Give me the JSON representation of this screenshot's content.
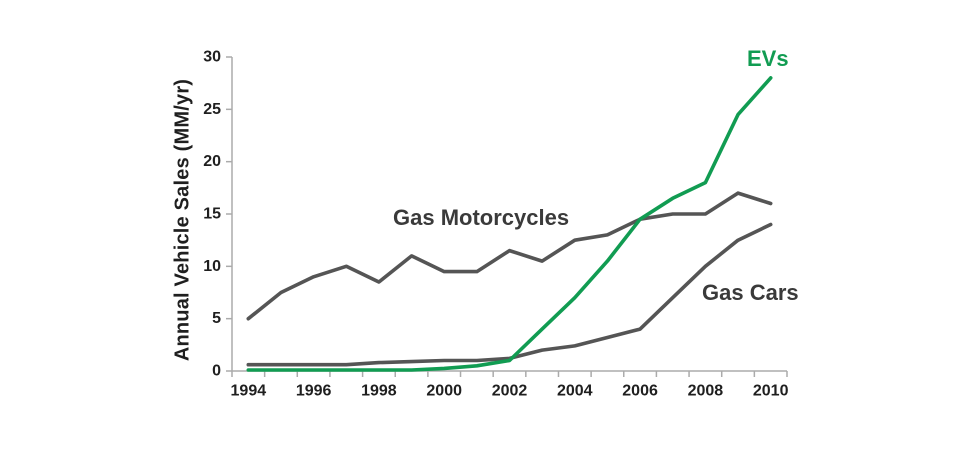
{
  "chart_data": {
    "type": "line",
    "title": "",
    "xlabel": "",
    "ylabel": "Annual Vehicle Sales (MM/yr)",
    "ylim": [
      0,
      30
    ],
    "y_ticks": [
      0,
      5,
      10,
      15,
      20,
      25,
      30
    ],
    "x_tick_labels": [
      "1994",
      "1996",
      "1998",
      "2000",
      "2002",
      "2004",
      "2006",
      "2008",
      "2010"
    ],
    "categories": [
      1994,
      1995,
      1996,
      1997,
      1998,
      1999,
      2000,
      2001,
      2002,
      2003,
      2004,
      2005,
      2006,
      2007,
      2008,
      2009,
      2010
    ],
    "series": [
      {
        "name": "Gas Motorcycles",
        "color": "#555555",
        "values": [
          5,
          7.5,
          9,
          10,
          8.5,
          11,
          9.5,
          9.5,
          11.5,
          10.5,
          12.5,
          13,
          14.5,
          15,
          15,
          17,
          16
        ]
      },
      {
        "name": "EVs",
        "color": "#119c52",
        "values": [
          0.1,
          0.1,
          0.1,
          0.1,
          0.1,
          0.1,
          0.25,
          0.5,
          1,
          4,
          7,
          10.5,
          14.5,
          16.5,
          18,
          24.5,
          28
        ]
      },
      {
        "name": "Gas Cars",
        "color": "#555555",
        "values": [
          0.6,
          0.6,
          0.6,
          0.6,
          0.8,
          0.9,
          1,
          1,
          1.2,
          2,
          2.4,
          3.2,
          4,
          7,
          10,
          12.5,
          14
        ]
      }
    ],
    "grid": false,
    "legend_position": "inline-annotations",
    "colors": {
      "axis": "#ababab",
      "tick_text": "#1f1f1f",
      "annotation_gray": "#3a3a3a",
      "ev_green": "#119c52",
      "line_gray": "#555555"
    }
  }
}
